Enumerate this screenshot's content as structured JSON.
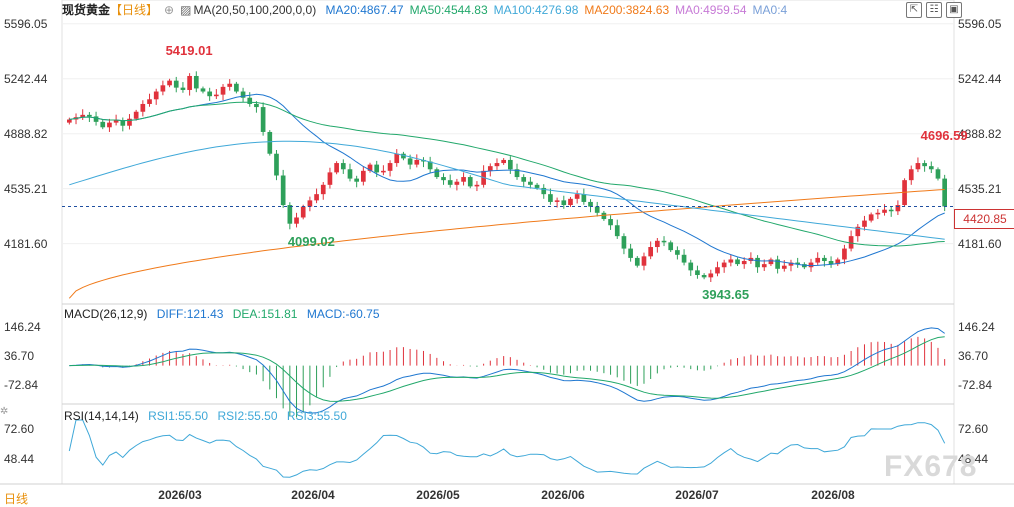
{
  "header": {
    "instrument": "现货黄金",
    "period": "【日线】",
    "ma_label": "MA(20,50,100,200,0,0)",
    "ma_values": [
      {
        "text": "MA20:4867.47",
        "color": "#1f77d0"
      },
      {
        "text": "MA50:4544.83",
        "color": "#22a86b"
      },
      {
        "text": "MA100:4276.98",
        "color": "#3fa8d8"
      },
      {
        "text": "MA200:3824.63",
        "color": "#f07a1a"
      },
      {
        "text": "MA0:4959.54",
        "color": "#c77ad6"
      },
      {
        "text": "MA0:4",
        "color": "#7aa0d8"
      }
    ]
  },
  "macd_legend": {
    "label": "MACD(26,12,9)",
    "diff": "DIFF:121.43",
    "dea": "DEA:151.81",
    "macd": "MACD:-60.75"
  },
  "rsi_legend": {
    "label": "RSI(14,14,14)",
    "rsi1": "RSI1:55.50",
    "rsi2": "RSI2:55.50",
    "rsi3": "RSI3:55.50"
  },
  "period_button": "日线",
  "watermark": "FX678",
  "current_price": "4420.85",
  "colors": {
    "up": "#e0323c",
    "down": "#2ea05a",
    "ma20": "#1f77d0",
    "ma50": "#22a86b",
    "ma100": "#3fa8d8",
    "ma200": "#f07a1a",
    "diff": "#1f77d0",
    "dea": "#22a86b",
    "rsi": "#3fa8d8"
  },
  "chart_data": [
    {
      "type": "candlestick",
      "title": "现货黄金 日线",
      "y_ticks": [
        "5596.05",
        "5242.44",
        "4888.82",
        "4535.21",
        "4181.60"
      ],
      "ylim": [
        3800,
        5620
      ],
      "x_ticks": [
        "2026/03",
        "2026/04",
        "2026/05",
        "2026/06",
        "2026/07",
        "2026/08"
      ],
      "annotations": [
        {
          "text": "5419.01",
          "kind": "high"
        },
        {
          "text": "4099.02",
          "kind": "low"
        },
        {
          "text": "3943.65",
          "kind": "low"
        },
        {
          "text": "4696.59",
          "kind": "high"
        }
      ],
      "closes": [
        4980,
        4995,
        5010,
        5000,
        4965,
        4930,
        4960,
        4975,
        4940,
        4985,
        5030,
        5080,
        5110,
        5160,
        5200,
        5230,
        5185,
        5170,
        5260,
        5180,
        5160,
        5130,
        5140,
        5190,
        5210,
        5160,
        5120,
        5080,
        5060,
        4900,
        4760,
        4620,
        4430,
        4310,
        4350,
        4420,
        4460,
        4500,
        4560,
        4640,
        4700,
        4660,
        4600,
        4580,
        4650,
        4690,
        4640,
        4650,
        4700,
        4760,
        4730,
        4690,
        4720,
        4710,
        4660,
        4610,
        4590,
        4560,
        4580,
        4610,
        4550,
        4560,
        4650,
        4680,
        4700,
        4720,
        4660,
        4610,
        4580,
        4560,
        4540,
        4500,
        4450,
        4460,
        4430,
        4470,
        4500,
        4450,
        4420,
        4380,
        4340,
        4300,
        4230,
        4150,
        4090,
        4040,
        4100,
        4160,
        4200,
        4190,
        4140,
        4110,
        4060,
        4010,
        3980,
        3965,
        3990,
        4030,
        4060,
        4080,
        4050,
        4070,
        4090,
        4030,
        4050,
        4080,
        4020,
        4040,
        4060,
        4050,
        4030,
        4060,
        4090,
        4070,
        4050,
        4080,
        4150,
        4230,
        4290,
        4330,
        4370,
        4380,
        4400,
        4390,
        4430,
        4590,
        4660,
        4700,
        4680,
        4660,
        4600,
        4421
      ],
      "series": [
        {
          "name": "MA20",
          "value": "4867.47"
        },
        {
          "name": "MA50",
          "value": "4544.83"
        },
        {
          "name": "MA100",
          "value": "4276.98"
        },
        {
          "name": "MA200",
          "value": "3824.63"
        }
      ]
    },
    {
      "type": "line",
      "title": "MACD(26,12,9)",
      "y_ticks": [
        "146.24",
        "36.70",
        "-72.84"
      ],
      "ylim": [
        -130,
        180
      ],
      "series": [
        {
          "name": "DIFF",
          "value": "121.43"
        },
        {
          "name": "DEA",
          "value": "151.81"
        },
        {
          "name": "MACD",
          "value": "-60.75"
        }
      ]
    },
    {
      "type": "line",
      "title": "RSI(14,14,14)",
      "y_ticks": [
        "72.60",
        "48.44"
      ],
      "ylim": [
        30,
        80
      ],
      "series": [
        {
          "name": "RSI1",
          "value": "55.50"
        },
        {
          "name": "RSI2",
          "value": "55.50"
        },
        {
          "name": "RSI3",
          "value": "55.50"
        }
      ]
    }
  ]
}
